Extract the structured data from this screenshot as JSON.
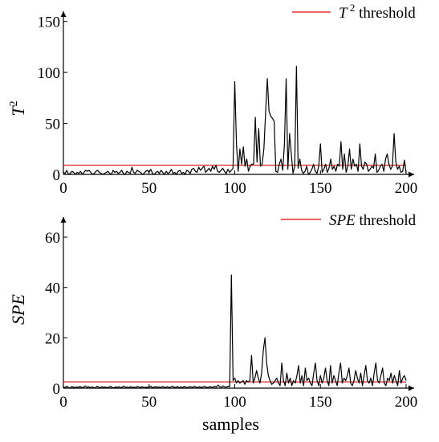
{
  "chart_data": [
    {
      "type": "line",
      "ylabel": "T",
      "ylabel_sup": "2",
      "xlabel": "",
      "xlim": [
        0,
        200
      ],
      "ylim": [
        0,
        160
      ],
      "xticks": [
        0,
        50,
        100,
        150,
        200
      ],
      "yticks": [
        0,
        50,
        100,
        150
      ],
      "threshold": 9,
      "legend": {
        "sym": "T",
        "sup": "2",
        "text": " threshold",
        "placement": "top-right"
      },
      "colors": {
        "series": "#000000",
        "threshold": "#e03030"
      },
      "y": [
        2,
        1,
        4,
        0,
        1,
        3,
        2,
        0,
        2,
        1,
        3,
        0,
        2,
        4,
        3,
        4,
        2,
        0,
        1,
        3,
        4,
        2,
        1,
        0,
        1,
        2,
        3,
        1,
        0,
        4,
        2,
        3,
        1,
        2,
        4,
        1,
        0,
        3,
        2,
        1,
        7,
        2,
        1,
        4,
        3,
        2,
        0,
        1,
        3,
        4,
        2,
        5,
        1,
        0,
        2,
        3,
        1,
        4,
        2,
        0,
        3,
        1,
        2,
        5,
        1,
        2,
        0,
        3,
        4,
        1,
        2,
        0,
        4,
        3,
        1,
        5,
        6,
        3,
        2,
        7,
        4,
        6,
        8,
        2,
        4,
        6,
        3,
        8,
        5,
        9,
        3,
        2,
        4,
        6,
        3,
        1,
        5,
        2,
        4,
        6,
        91,
        30,
        3,
        25,
        10,
        27,
        8,
        15,
        3,
        8,
        10,
        10,
        56,
        12,
        45,
        8,
        10,
        25,
        60,
        94,
        62,
        57,
        55,
        52,
        3,
        2,
        10,
        15,
        4,
        30,
        94,
        5,
        40,
        20,
        1,
        8,
        106,
        6,
        15,
        4,
        1,
        3,
        8,
        0,
        2,
        5,
        10,
        3,
        1,
        8,
        30,
        2,
        5,
        10,
        2,
        6,
        15,
        5,
        8,
        3,
        10,
        8,
        32,
        5,
        20,
        2,
        8,
        25,
        5,
        15,
        8,
        10,
        3,
        30,
        8,
        5,
        12,
        10,
        3,
        5,
        8,
        6,
        20,
        2,
        4,
        8,
        10,
        3,
        15,
        20,
        10,
        5,
        8,
        40,
        12,
        5,
        8,
        2,
        3,
        14,
        1
      ]
    },
    {
      "type": "line",
      "ylabel": "SPE",
      "xlabel": "samples",
      "xlim": [
        0,
        200
      ],
      "ylim": [
        0,
        68
      ],
      "xticks": [
        0,
        50,
        100,
        150,
        200
      ],
      "yticks": [
        0,
        20,
        40,
        60
      ],
      "threshold": 2.5,
      "legend": {
        "sym": "SPE",
        "text": " threshold",
        "placement": "top-right"
      },
      "colors": {
        "series": "#000000",
        "threshold": "#e03030"
      },
      "y": [
        0.5,
        0.2,
        0.8,
        0.3,
        0.1,
        0.6,
        0.4,
        0.2,
        0.5,
        0.3,
        0.7,
        0.2,
        0.4,
        0.9,
        0.3,
        0.6,
        0.2,
        0.5,
        0.3,
        0.1,
        0.8,
        0.4,
        0.2,
        0.6,
        0.3,
        0.5,
        0.2,
        0.4,
        0.7,
        0.3,
        0.1,
        0.5,
        0.3,
        0.6,
        0.2,
        0.4,
        0.8,
        0.3,
        0.5,
        0.2,
        0.6,
        0.3,
        0.4,
        0.2,
        0.7,
        0.5,
        0.3,
        0.6,
        0.2,
        0.4,
        0.3,
        0.5,
        0.8,
        0.2,
        0.4,
        0.6,
        0.3,
        0.5,
        0.2,
        0.7,
        0.4,
        0.3,
        0.6,
        0.2,
        0.5,
        0.8,
        0.3,
        0.4,
        0.6,
        0.2,
        0.5,
        0.3,
        0.7,
        0.4,
        0.2,
        0.6,
        0.5,
        0.3,
        0.8,
        0.4,
        0.2,
        0.6,
        0.3,
        0.5,
        0.7,
        0.4,
        0.2,
        0.6,
        0.5,
        0.3,
        0.8,
        0.4,
        1.2,
        0.6,
        0.3,
        0.9,
        0.5,
        0.4,
        0.8,
        0.6,
        45,
        3,
        4,
        2,
        3,
        2,
        2.5,
        3,
        1.5,
        3,
        2.5,
        3,
        13,
        2,
        4,
        7,
        4,
        2,
        6,
        15,
        20,
        10,
        5,
        3,
        1.5,
        2,
        3,
        4,
        2,
        1,
        10,
        3,
        1,
        6,
        2,
        4,
        1,
        3,
        2,
        5,
        9,
        2,
        5,
        1,
        8,
        3,
        4,
        2,
        1,
        6,
        10,
        3,
        1,
        5,
        2,
        4,
        8,
        3,
        1,
        9,
        2,
        5,
        3,
        1,
        6,
        10,
        2,
        4,
        3,
        5,
        8,
        2,
        1,
        3,
        7,
        4,
        2,
        6,
        1,
        5,
        9,
        3,
        2,
        4,
        1,
        6,
        10,
        3,
        2,
        5,
        8,
        2,
        1,
        4,
        3,
        6,
        2,
        5,
        3,
        1,
        7,
        2,
        4,
        5,
        3
      ]
    }
  ]
}
